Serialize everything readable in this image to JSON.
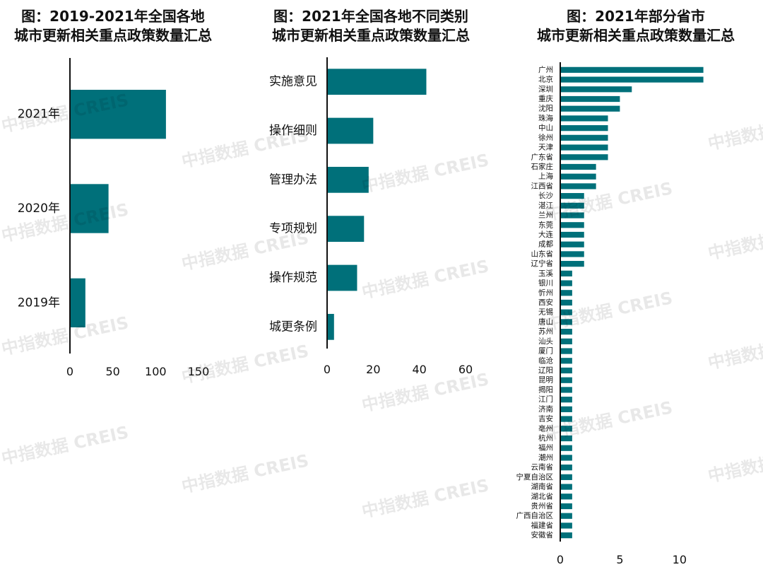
{
  "watermark": "中指数据 CREIS",
  "colors": {
    "bar": "#00707A",
    "axis": "#111111"
  },
  "chart_data": [
    {
      "type": "bar",
      "orientation": "horizontal",
      "title": [
        "图：2019-2021年全国各地",
        "城市更新相关重点政策数量汇总"
      ],
      "categories": [
        "2021年",
        "2020年",
        "2019年"
      ],
      "values": [
        112,
        45,
        18
      ],
      "xlim": [
        0,
        150
      ],
      "xticks": [
        0,
        50,
        100,
        150
      ],
      "grid": false
    },
    {
      "type": "bar",
      "orientation": "horizontal",
      "title": [
        "图：2021年全国各地不同类别",
        "城市更新相关重点政策数量汇总"
      ],
      "categories": [
        "实施意见",
        "操作细则",
        "管理办法",
        "专项规划",
        "操作规范",
        "城更条例"
      ],
      "values": [
        43,
        20,
        18,
        16,
        13,
        3
      ],
      "xlim": [
        0,
        60
      ],
      "xticks": [
        0,
        20,
        40,
        60
      ],
      "grid": false
    },
    {
      "type": "bar",
      "orientation": "horizontal",
      "title": [
        "图：2021年部分省市",
        "城市更新相关重点政策数量汇总"
      ],
      "categories": [
        "广州",
        "北京",
        "深圳",
        "重庆",
        "沈阳",
        "珠海",
        "中山",
        "徐州",
        "天津",
        "广东省",
        "石家庄",
        "上海",
        "江西省",
        "长沙",
        "湛江",
        "兰州",
        "东莞",
        "大连",
        "成都",
        "山东省",
        "辽宁省",
        "玉溪",
        "银川",
        "忻州",
        "西安",
        "无锡",
        "唐山",
        "苏州",
        "汕头",
        "厦门",
        "临沧",
        "辽阳",
        "昆明",
        "揭阳",
        "江门",
        "济南",
        "吉安",
        "亳州",
        "杭州",
        "福州",
        "潮州",
        "云南省",
        "宁夏自治区",
        "湖南省",
        "湖北省",
        "贵州省",
        "广西自治区",
        "福建省",
        "安徽省"
      ],
      "values": [
        12,
        12,
        6,
        5,
        5,
        4,
        4,
        4,
        4,
        4,
        3,
        3,
        3,
        2,
        2,
        2,
        2,
        2,
        2,
        2,
        2,
        1,
        1,
        1,
        1,
        1,
        1,
        1,
        1,
        1,
        1,
        1,
        1,
        1,
        1,
        1,
        1,
        1,
        1,
        1,
        1,
        1,
        1,
        1,
        1,
        1,
        1,
        1,
        1
      ],
      "xlim": [
        0,
        12
      ],
      "xticks": [
        0,
        5,
        10
      ],
      "grid": false
    }
  ]
}
